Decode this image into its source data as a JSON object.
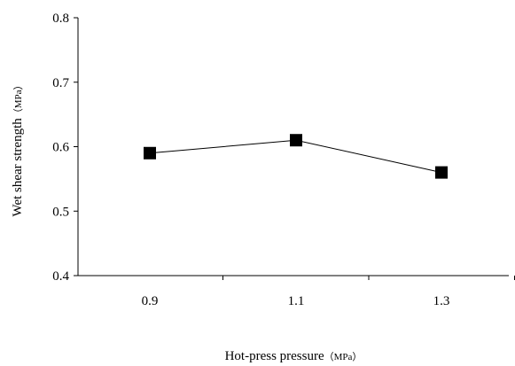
{
  "chart_data": {
    "type": "line",
    "title": "",
    "xlabel": "Hot-press pressure",
    "xlabel_unit": "（MPa）",
    "ylabel": "Wet shear strength",
    "ylabel_unit": "（MPa）",
    "x": [
      "0.9",
      "1.1",
      "1.3"
    ],
    "y_ticks": [
      "0.4",
      "0.5",
      "0.6",
      "0.7",
      "0.8"
    ],
    "ylim": [
      0.4,
      0.8
    ],
    "grid": false,
    "legend": "none",
    "series": [
      {
        "values": [
          0.59,
          0.61,
          0.56
        ],
        "color": "#000000",
        "marker": "square"
      }
    ]
  }
}
